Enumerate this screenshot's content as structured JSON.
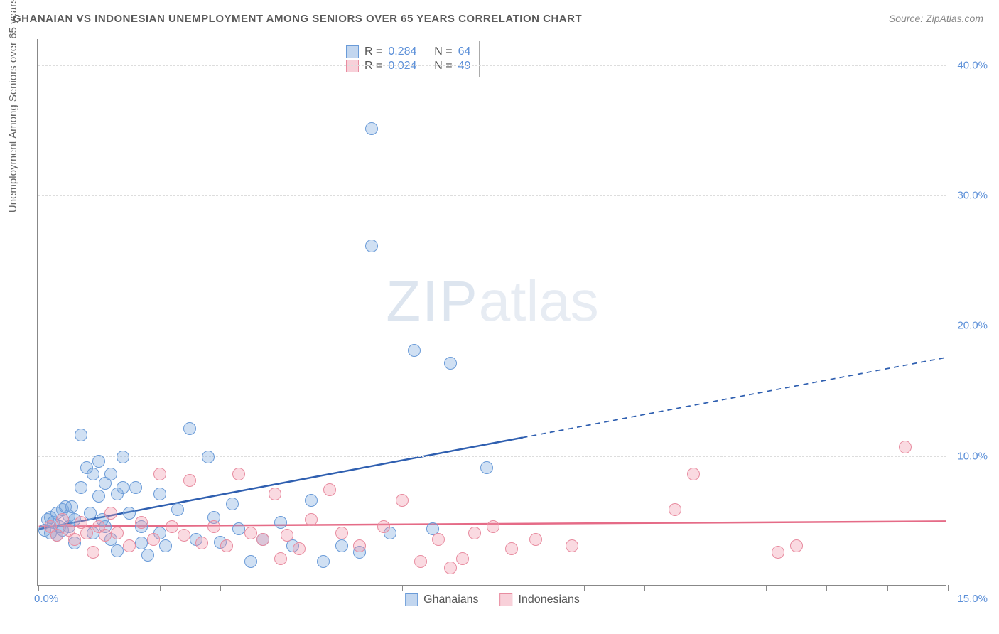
{
  "title": "GHANAIAN VS INDONESIAN UNEMPLOYMENT AMONG SENIORS OVER 65 YEARS CORRELATION CHART",
  "source": "Source: ZipAtlas.com",
  "y_axis_label": "Unemployment Among Seniors over 65 years",
  "watermark_a": "ZIP",
  "watermark_b": "atlas",
  "chart": {
    "type": "scatter",
    "xlim": [
      0,
      15
    ],
    "ylim": [
      0,
      42
    ],
    "x_ticks": [
      0,
      1,
      2,
      3,
      4,
      5,
      6,
      7,
      8,
      9,
      10,
      11,
      12,
      13,
      14,
      15
    ],
    "x_tick_labels": {
      "left": "0.0%",
      "right": "15.0%"
    },
    "y_ticks": [
      10,
      20,
      30,
      40
    ],
    "y_tick_labels": [
      "10.0%",
      "20.0%",
      "30.0%",
      "40.0%"
    ],
    "grid_color": "#dddddd",
    "background_color": "#ffffff",
    "point_radius": 9,
    "series": [
      {
        "name": "Ghanaians",
        "fill": "rgba(120,165,220,0.35)",
        "stroke": "#6a9bd8",
        "trend": {
          "x1": 0,
          "y1": 4.3,
          "x2": 15,
          "y2": 17.5,
          "solid_to_x": 8.0,
          "color": "#2f5fb0",
          "width": 2.5
        },
        "points": [
          [
            0.1,
            4.2
          ],
          [
            0.15,
            5.0
          ],
          [
            0.2,
            4.0
          ],
          [
            0.2,
            5.2
          ],
          [
            0.25,
            4.8
          ],
          [
            0.3,
            3.8
          ],
          [
            0.3,
            5.5
          ],
          [
            0.35,
            4.5
          ],
          [
            0.4,
            5.8
          ],
          [
            0.4,
            4.2
          ],
          [
            0.45,
            6.0
          ],
          [
            0.5,
            4.5
          ],
          [
            0.5,
            5.3
          ],
          [
            0.55,
            6.0
          ],
          [
            0.6,
            5.0
          ],
          [
            0.6,
            3.2
          ],
          [
            0.7,
            7.5
          ],
          [
            0.7,
            11.5
          ],
          [
            0.8,
            9.0
          ],
          [
            0.85,
            5.5
          ],
          [
            0.9,
            8.5
          ],
          [
            0.9,
            4.0
          ],
          [
            1.0,
            9.5
          ],
          [
            1.0,
            6.8
          ],
          [
            1.1,
            7.8
          ],
          [
            1.1,
            4.5
          ],
          [
            1.2,
            8.5
          ],
          [
            1.2,
            3.5
          ],
          [
            1.3,
            7.0
          ],
          [
            1.3,
            2.6
          ],
          [
            1.4,
            9.8
          ],
          [
            1.4,
            7.5
          ],
          [
            1.5,
            5.5
          ],
          [
            1.6,
            7.5
          ],
          [
            1.7,
            4.5
          ],
          [
            1.7,
            3.2
          ],
          [
            1.8,
            2.3
          ],
          [
            2.0,
            7.0
          ],
          [
            2.0,
            4.0
          ],
          [
            2.1,
            3.0
          ],
          [
            2.3,
            5.8
          ],
          [
            2.5,
            12.0
          ],
          [
            2.6,
            3.5
          ],
          [
            2.8,
            9.8
          ],
          [
            2.9,
            5.2
          ],
          [
            3.0,
            3.3
          ],
          [
            3.2,
            6.2
          ],
          [
            3.3,
            4.3
          ],
          [
            3.5,
            1.8
          ],
          [
            3.7,
            3.5
          ],
          [
            4.0,
            4.8
          ],
          [
            4.2,
            3.0
          ],
          [
            4.5,
            6.5
          ],
          [
            4.7,
            1.8
          ],
          [
            5.0,
            3.0
          ],
          [
            5.3,
            2.5
          ],
          [
            5.5,
            35.0
          ],
          [
            5.5,
            26.0
          ],
          [
            5.8,
            4.0
          ],
          [
            6.2,
            18.0
          ],
          [
            6.5,
            4.3
          ],
          [
            6.8,
            17.0
          ],
          [
            7.4,
            9.0
          ],
          [
            1.05,
            5.0
          ]
        ]
      },
      {
        "name": "Indonesians",
        "fill": "rgba(240,150,170,0.35)",
        "stroke": "#e88ca0",
        "trend": {
          "x1": 0,
          "y1": 4.5,
          "x2": 15,
          "y2": 4.9,
          "solid_to_x": 15,
          "color": "#e56b87",
          "width": 2.5
        },
        "points": [
          [
            0.2,
            4.5
          ],
          [
            0.3,
            3.8
          ],
          [
            0.4,
            5.0
          ],
          [
            0.5,
            4.2
          ],
          [
            0.6,
            3.5
          ],
          [
            0.7,
            4.8
          ],
          [
            0.8,
            4.0
          ],
          [
            0.9,
            2.5
          ],
          [
            1.0,
            4.5
          ],
          [
            1.1,
            3.8
          ],
          [
            1.2,
            5.5
          ],
          [
            1.3,
            4.0
          ],
          [
            1.5,
            3.0
          ],
          [
            1.7,
            4.8
          ],
          [
            1.9,
            3.5
          ],
          [
            2.0,
            8.5
          ],
          [
            2.2,
            4.5
          ],
          [
            2.4,
            3.8
          ],
          [
            2.5,
            8.0
          ],
          [
            2.7,
            3.2
          ],
          [
            2.9,
            4.5
          ],
          [
            3.1,
            3.0
          ],
          [
            3.3,
            8.5
          ],
          [
            3.5,
            4.0
          ],
          [
            3.7,
            3.5
          ],
          [
            3.9,
            7.0
          ],
          [
            4.1,
            3.8
          ],
          [
            4.3,
            2.8
          ],
          [
            4.5,
            5.0
          ],
          [
            4.8,
            7.3
          ],
          [
            5.0,
            4.0
          ],
          [
            5.3,
            3.0
          ],
          [
            5.7,
            4.5
          ],
          [
            6.0,
            6.5
          ],
          [
            6.3,
            1.8
          ],
          [
            6.6,
            3.5
          ],
          [
            6.8,
            1.3
          ],
          [
            7.0,
            2.0
          ],
          [
            7.2,
            4.0
          ],
          [
            7.5,
            4.5
          ],
          [
            7.8,
            2.8
          ],
          [
            8.2,
            3.5
          ],
          [
            8.8,
            3.0
          ],
          [
            10.5,
            5.8
          ],
          [
            10.8,
            8.5
          ],
          [
            12.2,
            2.5
          ],
          [
            12.5,
            3.0
          ],
          [
            14.3,
            10.6
          ],
          [
            4.0,
            2.0
          ]
        ]
      }
    ],
    "stats": [
      {
        "swatch_fill": "rgba(120,165,220,0.45)",
        "swatch_stroke": "#6a9bd8",
        "r": "0.284",
        "n": "64"
      },
      {
        "swatch_fill": "rgba(240,150,170,0.45)",
        "swatch_stroke": "#e88ca0",
        "r": "0.024",
        "n": "49"
      }
    ],
    "legend": [
      {
        "swatch_fill": "rgba(120,165,220,0.45)",
        "swatch_stroke": "#6a9bd8",
        "label": "Ghanaians"
      },
      {
        "swatch_fill": "rgba(240,150,170,0.45)",
        "swatch_stroke": "#e88ca0",
        "label": "Indonesians"
      }
    ]
  }
}
